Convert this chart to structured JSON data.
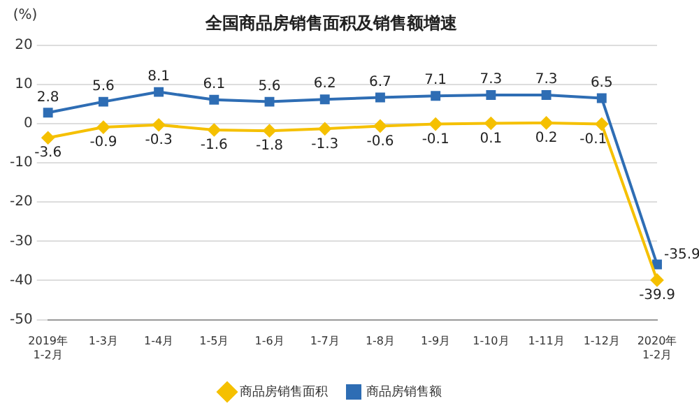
{
  "chart_data": {
    "type": "line",
    "title": "全国商品房销售面积及销售额增速",
    "ylabel": "(%)",
    "categories": [
      "2019年\n1-2月",
      "1-3月",
      "1-4月",
      "1-5月",
      "1-6月",
      "1-7月",
      "1-8月",
      "1-9月",
      "1-10月",
      "1-11月",
      "1-12月",
      "2020年\n1-2月"
    ],
    "series": [
      {
        "name": "商品房销售面积",
        "color": "#f5c000",
        "marker": "diamond",
        "values": [
          -3.6,
          -0.9,
          -0.3,
          -1.6,
          -1.8,
          -1.3,
          -0.6,
          -0.1,
          0.1,
          0.2,
          -0.1,
          -39.9
        ]
      },
      {
        "name": "商品房销售额",
        "color": "#2e6db4",
        "marker": "square",
        "values": [
          2.8,
          5.6,
          8.1,
          6.1,
          5.6,
          6.2,
          6.7,
          7.1,
          7.3,
          7.3,
          6.5,
          -35.9
        ]
      }
    ],
    "ylim": [
      -50,
      20
    ],
    "yticks": [
      -50,
      -40,
      -30,
      -20,
      -10,
      0,
      10,
      20
    ],
    "grid": "y",
    "legend": "bottom",
    "data_labels": true,
    "line_style": "solid"
  }
}
